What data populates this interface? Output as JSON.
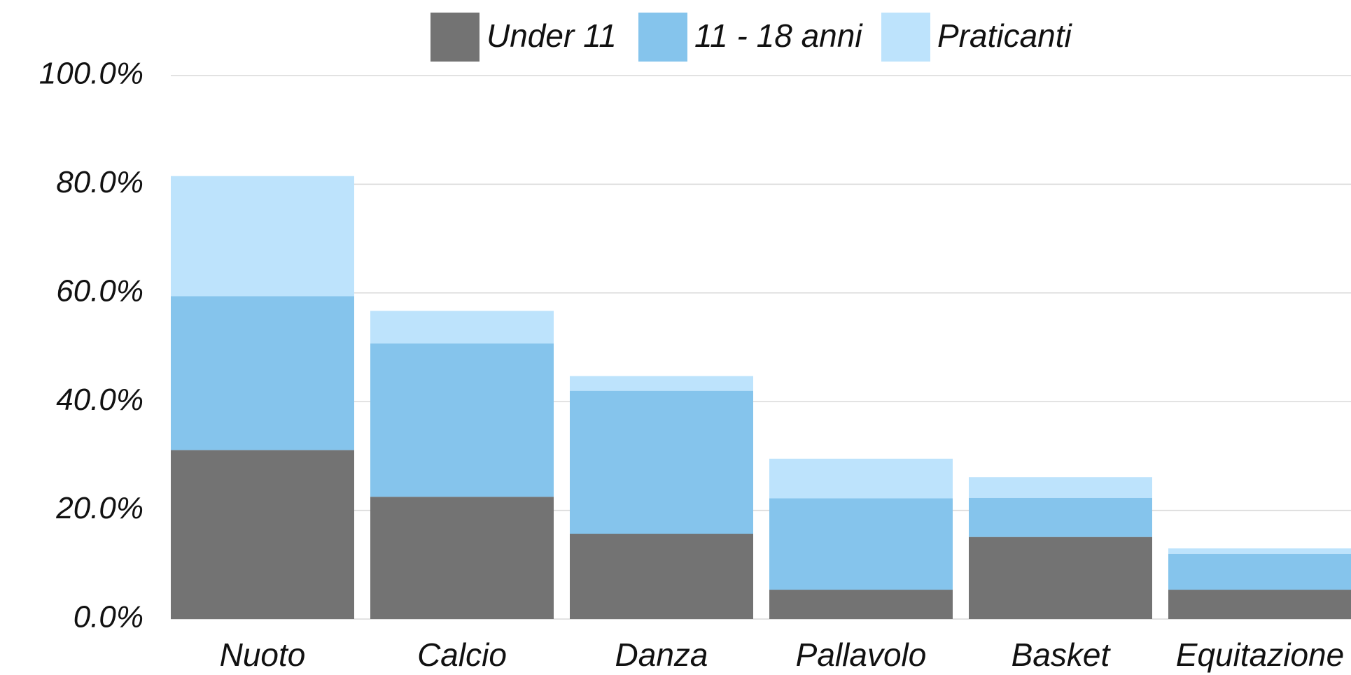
{
  "chart_data": {
    "type": "stacked_bar",
    "categories": [
      "Nuoto",
      "Calcio",
      "Danza",
      "Pallavolo",
      "Basket",
      "Equitazione"
    ],
    "series": [
      {
        "name": "Under 11",
        "color": "#737373",
        "values": [
          31.1,
          22.5,
          15.7,
          5.4,
          15.1,
          5.4
        ]
      },
      {
        "name": "11 - 18 anni",
        "color": "#85c4ec",
        "values": [
          28.3,
          28.2,
          26.3,
          16.8,
          7.2,
          6.6
        ]
      },
      {
        "name": "Praticanti",
        "color": "#bde3fc",
        "values": [
          22.1,
          6.0,
          2.7,
          7.3,
          3.8,
          1.0
        ]
      }
    ],
    "ylim": [
      0,
      100
    ],
    "yticks": [
      {
        "value": 0,
        "label": "0.0%"
      },
      {
        "value": 20,
        "label": "20.0%"
      },
      {
        "value": 40,
        "label": "40.0%"
      },
      {
        "value": 60,
        "label": "60.0%"
      },
      {
        "value": 80,
        "label": "80.0%"
      },
      {
        "value": 100,
        "label": "100.0%"
      }
    ],
    "grid": true,
    "legend": "top"
  }
}
